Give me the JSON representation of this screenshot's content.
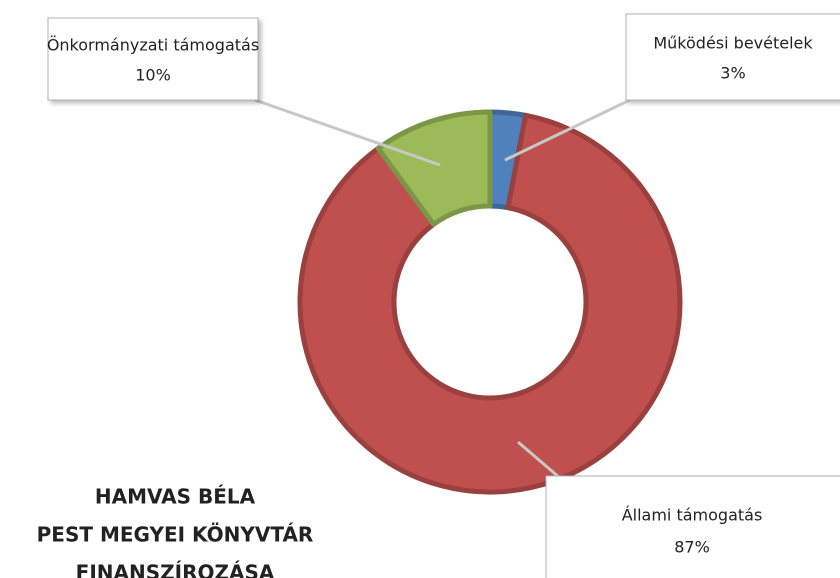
{
  "chart_data": {
    "type": "donut",
    "title": [
      "HAMVAS BÉLA",
      "PEST MEGYEI KÖNYVTÁR",
      "FINANSZÍROZÁSA"
    ],
    "categories": [
      "Működési bevételek",
      "Állami támogatás",
      "Önkormányzati támogatás"
    ],
    "values": [
      3,
      87,
      10
    ],
    "value_labels": [
      "3%",
      "87%",
      "10%"
    ],
    "colors": [
      "#4f81bd",
      "#c0504d",
      "#9bbb59"
    ]
  }
}
